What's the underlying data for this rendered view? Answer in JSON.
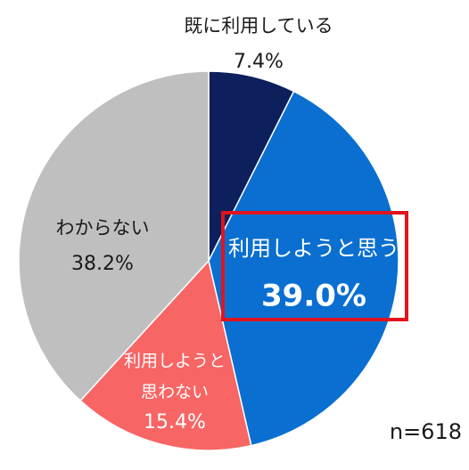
{
  "chart_data": {
    "type": "pie",
    "start_angle_deg": 0,
    "direction": "clockwise",
    "slices": [
      {
        "label": "既に利用している",
        "label_lines": [
          "既に利用している"
        ],
        "value": 7.4,
        "value_text": "7.4%",
        "color": "#0d1f5c",
        "label_color": "#1a1a1a"
      },
      {
        "label": "利用しようと思う",
        "label_lines": [
          "利用しようと思う"
        ],
        "value": 39.0,
        "value_text": "39.0%",
        "color": "#0a6fd0",
        "label_color": "#ffffff",
        "highlighted": true,
        "highlight_color": "#e0141e"
      },
      {
        "label": "利用しようと思わない",
        "label_lines": [
          "利用しようと",
          "思わない"
        ],
        "value": 15.4,
        "value_text": "15.4%",
        "color": "#f76565",
        "label_color": "#ffffff"
      },
      {
        "label": "わからない",
        "label_lines": [
          "わからない"
        ],
        "value": 38.2,
        "value_text": "38.2%",
        "color": "#bfbfbf",
        "label_color": "#1a1a1a"
      }
    ],
    "note": "n=618"
  }
}
